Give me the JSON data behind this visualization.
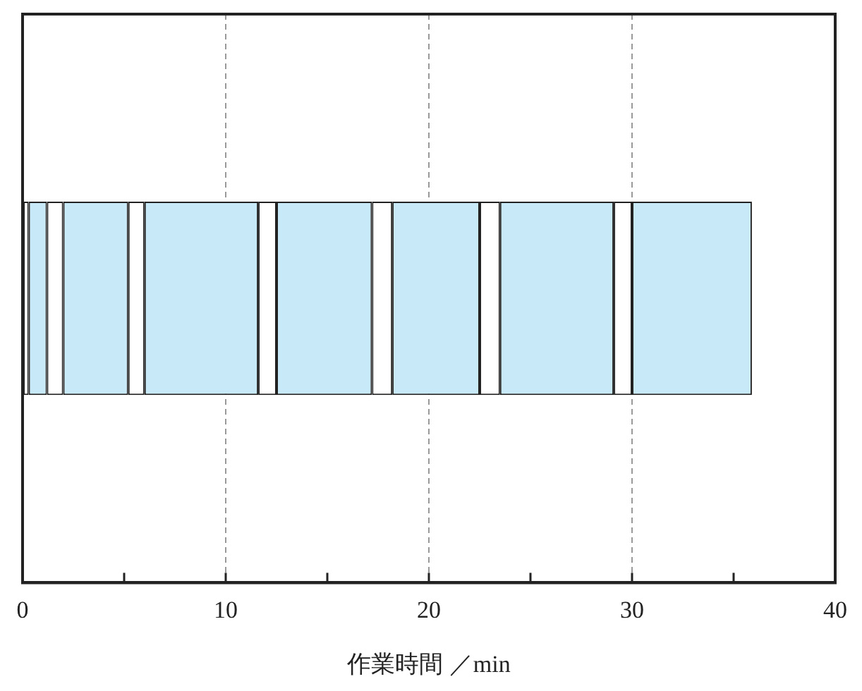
{
  "chart_data": {
    "type": "bar",
    "orientation": "horizontal",
    "stacked": true,
    "xlabel": "作業時間 ／min",
    "categories": [
      null
    ],
    "series": [
      {
        "color": "#ffffff",
        "values": [
          0.3
        ]
      },
      {
        "color": "#c8e9f8",
        "values": [
          0.9
        ]
      },
      {
        "color": "#ffffff",
        "values": [
          0.8
        ]
      },
      {
        "color": "#c8e9f8",
        "values": [
          3.2
        ]
      },
      {
        "color": "#ffffff",
        "values": [
          0.8
        ]
      },
      {
        "color": "#c8e9f8",
        "values": [
          5.6
        ]
      },
      {
        "color": "#ffffff",
        "values": [
          0.9
        ]
      },
      {
        "color": "#c8e9f8",
        "values": [
          4.7
        ]
      },
      {
        "color": "#ffffff",
        "values": [
          1.0
        ]
      },
      {
        "color": "#c8e9f8",
        "values": [
          4.3
        ]
      },
      {
        "color": "#ffffff",
        "values": [
          1.0
        ]
      },
      {
        "color": "#c8e9f8",
        "values": [
          5.6
        ]
      },
      {
        "color": "#ffffff",
        "values": [
          0.9
        ]
      },
      {
        "color": "#c8e9f8",
        "values": [
          5.9
        ]
      }
    ],
    "xlim": [
      0,
      40
    ],
    "xticks": [
      0,
      {
        "value": 5,
        "label": null
      },
      10,
      {
        "value": 15,
        "label": null
      },
      20,
      {
        "value": 25,
        "label": null
      },
      30,
      {
        "value": 35,
        "label": null
      },
      40
    ],
    "grid": "x"
  }
}
